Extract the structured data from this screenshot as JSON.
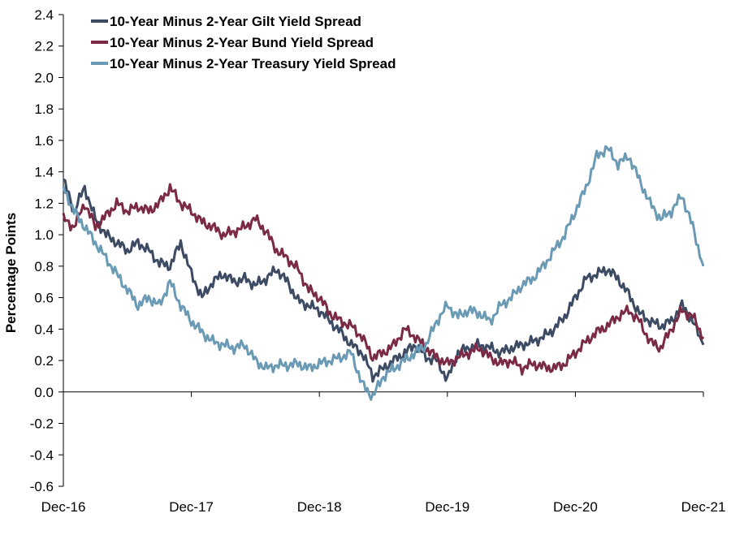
{
  "chart_data": {
    "type": "line",
    "title": "",
    "xlabel": "",
    "ylabel": "Percentage Points",
    "xlim": [
      "2016-12",
      "2021-12"
    ],
    "ylim": [
      -0.6,
      2.4
    ],
    "x_ticks": [
      "Dec-16",
      "Dec-17",
      "Dec-18",
      "Dec-19",
      "Dec-20",
      "Dec-21"
    ],
    "y_ticks": [
      "-0.6",
      "-0.4",
      "-0.2",
      "0.0",
      "0.2",
      "0.4",
      "0.6",
      "0.8",
      "1.0",
      "1.2",
      "1.4",
      "1.6",
      "1.8",
      "2.0",
      "2.2",
      "2.4"
    ],
    "grid": false,
    "legend_position": "top-left",
    "x": [
      "2016-12",
      "2017-01",
      "2017-02",
      "2017-03",
      "2017-04",
      "2017-05",
      "2017-06",
      "2017-07",
      "2017-08",
      "2017-09",
      "2017-10",
      "2017-11",
      "2017-12",
      "2018-01",
      "2018-02",
      "2018-03",
      "2018-04",
      "2018-05",
      "2018-06",
      "2018-07",
      "2018-08",
      "2018-09",
      "2018-10",
      "2018-11",
      "2018-12",
      "2019-01",
      "2019-02",
      "2019-03",
      "2019-04",
      "2019-05",
      "2019-06",
      "2019-07",
      "2019-08",
      "2019-09",
      "2019-10",
      "2019-11",
      "2019-12",
      "2020-01",
      "2020-02",
      "2020-03",
      "2020-04",
      "2020-05",
      "2020-06",
      "2020-07",
      "2020-08",
      "2020-09",
      "2020-10",
      "2020-11",
      "2020-12",
      "2021-01",
      "2021-02",
      "2021-03",
      "2021-04",
      "2021-05",
      "2021-06",
      "2021-07",
      "2021-08",
      "2021-09",
      "2021-10",
      "2021-11",
      "2021-12"
    ],
    "series": [
      {
        "name": "10-Year Minus 2-Year Gilt Yield Spread",
        "color": "#3d4a63",
        "values": [
          1.35,
          1.15,
          1.3,
          1.1,
          1.0,
          0.95,
          0.9,
          0.95,
          0.9,
          0.82,
          0.8,
          0.95,
          0.75,
          0.6,
          0.7,
          0.75,
          0.7,
          0.72,
          0.68,
          0.72,
          0.78,
          0.7,
          0.58,
          0.55,
          0.52,
          0.45,
          0.38,
          0.3,
          0.25,
          0.1,
          0.15,
          0.2,
          0.25,
          0.3,
          0.22,
          0.2,
          0.08,
          0.25,
          0.28,
          0.3,
          0.28,
          0.25,
          0.28,
          0.3,
          0.32,
          0.35,
          0.4,
          0.48,
          0.6,
          0.72,
          0.75,
          0.78,
          0.72,
          0.62,
          0.5,
          0.45,
          0.42,
          0.45,
          0.55,
          0.45,
          0.3
        ]
      },
      {
        "name": "10-Year Minus 2-Year Bund Yield Spread",
        "color": "#7b2a45",
        "values": [
          1.1,
          1.05,
          1.2,
          1.05,
          1.12,
          1.2,
          1.15,
          1.18,
          1.15,
          1.2,
          1.3,
          1.2,
          1.15,
          1.08,
          1.05,
          1.0,
          1.02,
          1.05,
          1.1,
          1.02,
          0.9,
          0.85,
          0.78,
          0.65,
          0.6,
          0.5,
          0.45,
          0.42,
          0.35,
          0.22,
          0.25,
          0.3,
          0.4,
          0.35,
          0.28,
          0.22,
          0.18,
          0.22,
          0.25,
          0.28,
          0.22,
          0.18,
          0.2,
          0.15,
          0.18,
          0.16,
          0.15,
          0.18,
          0.25,
          0.32,
          0.38,
          0.42,
          0.48,
          0.52,
          0.45,
          0.32,
          0.28,
          0.4,
          0.52,
          0.48,
          0.35
        ]
      },
      {
        "name": "10-Year Minus 2-Year Treasury Yield Spread",
        "color": "#6b9ab5",
        "values": [
          1.3,
          1.15,
          1.05,
          0.95,
          0.85,
          0.75,
          0.65,
          0.55,
          0.6,
          0.55,
          0.7,
          0.55,
          0.45,
          0.38,
          0.32,
          0.3,
          0.28,
          0.3,
          0.2,
          0.15,
          0.17,
          0.17,
          0.18,
          0.15,
          0.18,
          0.2,
          0.22,
          0.25,
          0.05,
          -0.03,
          0.1,
          0.15,
          0.2,
          0.25,
          0.3,
          0.45,
          0.55,
          0.48,
          0.52,
          0.5,
          0.45,
          0.55,
          0.6,
          0.68,
          0.72,
          0.8,
          0.9,
          1.0,
          1.15,
          1.3,
          1.5,
          1.55,
          1.45,
          1.5,
          1.35,
          1.2,
          1.1,
          1.15,
          1.25,
          1.05,
          0.8
        ]
      }
    ]
  }
}
